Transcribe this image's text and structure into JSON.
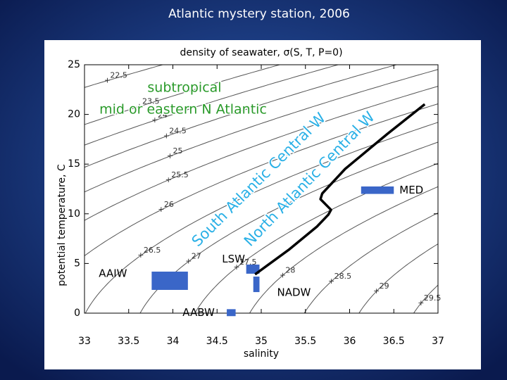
{
  "title": "Atlantic mystery station, 2006",
  "chart_data": {
    "type": "ts-diagram",
    "title": "density of seawater, σ(S, T, P=0)",
    "x_label": "salinity",
    "y_label": "potential temperature, C",
    "xlim": [
      33,
      37
    ],
    "ylim": [
      0,
      25
    ],
    "xticks": [
      33,
      33.5,
      34,
      34.5,
      35,
      35.5,
      36,
      36.5,
      37
    ],
    "yticks": [
      0,
      5,
      10,
      15,
      20,
      25
    ],
    "density_contours": [
      22.5,
      23.5,
      24,
      24.5,
      25,
      25.5,
      26,
      26.5,
      27,
      27.5,
      28,
      28.5,
      29,
      29.5
    ],
    "contour_color": "#555555",
    "series": [
      {
        "color": "#000000",
        "x": [
          34.93,
          35.31,
          35.63,
          35.76,
          35.79,
          35.67,
          35.69,
          35.95,
          36.19,
          36.43,
          36.85
        ],
        "values": [
          3.9,
          6.37,
          8.71,
          9.92,
          10.4,
          11.47,
          12.04,
          14.52,
          16.29,
          18.06,
          21.03
        ]
      }
    ],
    "water_masses": [
      {
        "name": "MED",
        "salinity": [
          36.13,
          36.5
        ],
        "temperature": [
          12.0,
          12.75
        ]
      },
      {
        "name": "LSW",
        "salinity": [
          34.83,
          34.98
        ],
        "temperature": [
          3.97,
          4.89
        ]
      },
      {
        "name": "AAIW",
        "salinity": [
          33.76,
          34.17
        ],
        "temperature": [
          2.34,
          4.18
        ]
      },
      {
        "name": "NADW",
        "salinity": [
          34.91,
          34.98
        ],
        "temperature": [
          2.12,
          3.68
        ]
      },
      {
        "name": "AABW",
        "salinity": [
          34.61,
          34.71
        ],
        "temperature": [
          -0.3,
          0.4
        ]
      }
    ],
    "water_mass_color": "#3a66c8",
    "annotations": [
      {
        "text": "subtropical",
        "color": "#2a9a2a"
      },
      {
        "text": "mid or eastern N Atlantic",
        "color": "#2a9a2a"
      },
      {
        "text": "South Atlantic Central W",
        "color": "#2ab0e6"
      },
      {
        "text": "North Atlantic Central W",
        "color": "#2ab0e6"
      }
    ]
  }
}
